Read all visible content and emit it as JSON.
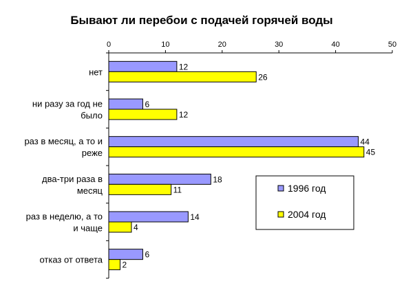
{
  "chart_data": {
    "type": "bar",
    "orientation": "horizontal",
    "title": "Бывают ли перебои с подачей горячей воды",
    "xlabel": "",
    "ylabel": "",
    "xlim": [
      0,
      50
    ],
    "x_ticks": [
      0,
      10,
      20,
      30,
      40,
      50
    ],
    "x_axis_position": "top",
    "grid": false,
    "legend_position": "right-lower-middle",
    "categories": [
      [
        "нет"
      ],
      [
        "ни разу за год не",
        "было"
      ],
      [
        "раз в месяц, а то и",
        "реже"
      ],
      [
        "два-три раза в",
        "месяц"
      ],
      [
        "раз в неделю, а то",
        "и чаще"
      ],
      [
        "отказ от ответа"
      ]
    ],
    "series": [
      {
        "name": "1996 год",
        "color": "#9999ff",
        "values": [
          12,
          6,
          44,
          18,
          14,
          6
        ]
      },
      {
        "name": "2004 год",
        "color": "#ffff00",
        "values": [
          26,
          12,
          45,
          11,
          4,
          2
        ]
      }
    ]
  }
}
